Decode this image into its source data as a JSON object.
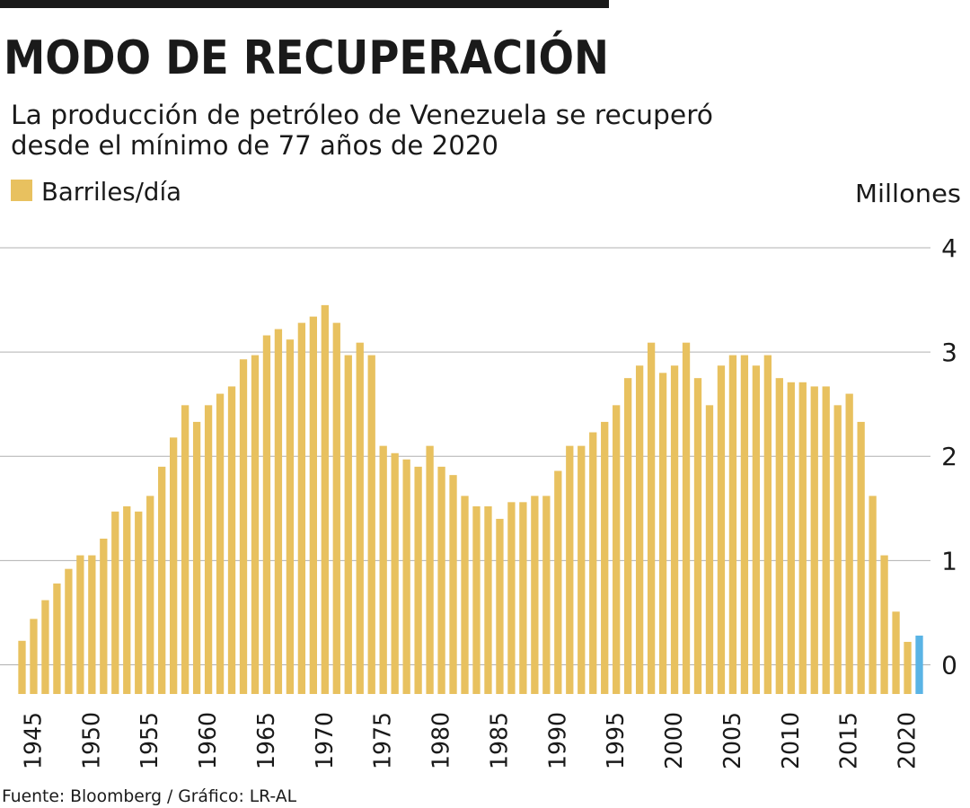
{
  "chart_data": {
    "type": "bar",
    "title": "MODO DE RECUPERACIÓN",
    "subtitle": [
      "La producción de petróleo de Venezuela se recuperó",
      "desde el mínimo de 77 años de 2020"
    ],
    "y_label": "Millones",
    "source": "Fuente: Bloomberg / Gráfico: LR-AL",
    "series": [
      {
        "name": "Barriles/día",
        "color": "#e8c15f",
        "colors": [
          "#e8c15f",
          "#e8c15f",
          "#e8c15f",
          "#e8c15f",
          "#e8c15f",
          "#e8c15f",
          "#e8c15f",
          "#e8c15f",
          "#e8c15f",
          "#e8c15f",
          "#e8c15f",
          "#e8c15f",
          "#e8c15f",
          "#e8c15f",
          "#e8c15f",
          "#e8c15f",
          "#e8c15f",
          "#e8c15f",
          "#e8c15f",
          "#e8c15f",
          "#e8c15f",
          "#e8c15f",
          "#e8c15f",
          "#e8c15f",
          "#e8c15f",
          "#e8c15f",
          "#e8c15f",
          "#e8c15f",
          "#e8c15f",
          "#e8c15f",
          "#e8c15f",
          "#e8c15f",
          "#e8c15f",
          "#e8c15f",
          "#e8c15f",
          "#e8c15f",
          "#e8c15f",
          "#e8c15f",
          "#e8c15f",
          "#e8c15f",
          "#e8c15f",
          "#e8c15f",
          "#e8c15f",
          "#e8c15f",
          "#e8c15f",
          "#e8c15f",
          "#e8c15f",
          "#e8c15f",
          "#e8c15f",
          "#e8c15f",
          "#e8c15f",
          "#e8c15f",
          "#e8c15f",
          "#e8c15f",
          "#e8c15f",
          "#e8c15f",
          "#e8c15f",
          "#e8c15f",
          "#e8c15f",
          "#e8c15f",
          "#e8c15f",
          "#e8c15f",
          "#e8c15f",
          "#e8c15f",
          "#e8c15f",
          "#e8c15f",
          "#e8c15f",
          "#e8c15f",
          "#e8c15f",
          "#e8c15f",
          "#e8c15f",
          "#e8c15f",
          "#e8c15f",
          "#e8c15f",
          "#e8c15f",
          "#e8c15f",
          "#e8c15f",
          "#5ab4e5"
        ],
        "values": [
          0.23,
          0.44,
          0.62,
          0.78,
          0.92,
          1.05,
          1.05,
          1.21,
          1.47,
          1.52,
          1.47,
          1.62,
          1.9,
          2.18,
          2.49,
          2.33,
          2.49,
          2.6,
          2.67,
          2.93,
          2.97,
          3.16,
          3.22,
          3.12,
          3.28,
          3.34,
          3.45,
          3.28,
          2.97,
          3.09,
          2.97,
          2.1,
          2.03,
          1.97,
          1.9,
          2.1,
          1.9,
          1.82,
          1.62,
          1.52,
          1.52,
          1.4,
          1.56,
          1.56,
          1.62,
          1.62,
          1.86,
          2.1,
          2.1,
          2.23,
          2.33,
          2.49,
          2.75,
          2.87,
          3.09,
          2.8,
          2.87,
          3.09,
          2.75,
          2.49,
          2.87,
          2.97,
          2.97,
          2.87,
          2.97,
          2.75,
          2.71,
          2.71,
          2.67,
          2.67,
          2.49,
          2.6,
          2.33,
          1.62,
          1.05,
          0.51,
          0.22,
          0.28
        ]
      }
    ],
    "x": [
      1944,
      1945,
      1946,
      1947,
      1948,
      1949,
      1950,
      1951,
      1952,
      1953,
      1954,
      1955,
      1956,
      1957,
      1958,
      1959,
      1960,
      1961,
      1962,
      1963,
      1964,
      1965,
      1966,
      1967,
      1968,
      1969,
      1970,
      1971,
      1972,
      1973,
      1974,
      1975,
      1976,
      1977,
      1978,
      1979,
      1980,
      1981,
      1982,
      1983,
      1984,
      1985,
      1986,
      1987,
      1988,
      1989,
      1990,
      1991,
      1992,
      1993,
      1994,
      1995,
      1996,
      1997,
      1998,
      1999,
      2000,
      2001,
      2002,
      2003,
      2004,
      2005,
      2006,
      2007,
      2008,
      2009,
      2010,
      2011,
      2012,
      2013,
      2014,
      2015,
      2016,
      2017,
      2018,
      2019,
      2020,
      2021
    ],
    "xlim": [
      1943.5,
      2021.5
    ],
    "xticks": [
      1945,
      1950,
      1955,
      1960,
      1965,
      1970,
      1975,
      1980,
      1985,
      1990,
      1995,
      2000,
      2005,
      2010,
      2015,
      2020
    ],
    "ylim": [
      -0.28,
      4
    ],
    "yticks": [
      0,
      1,
      2,
      3,
      4
    ],
    "grid": true
  }
}
